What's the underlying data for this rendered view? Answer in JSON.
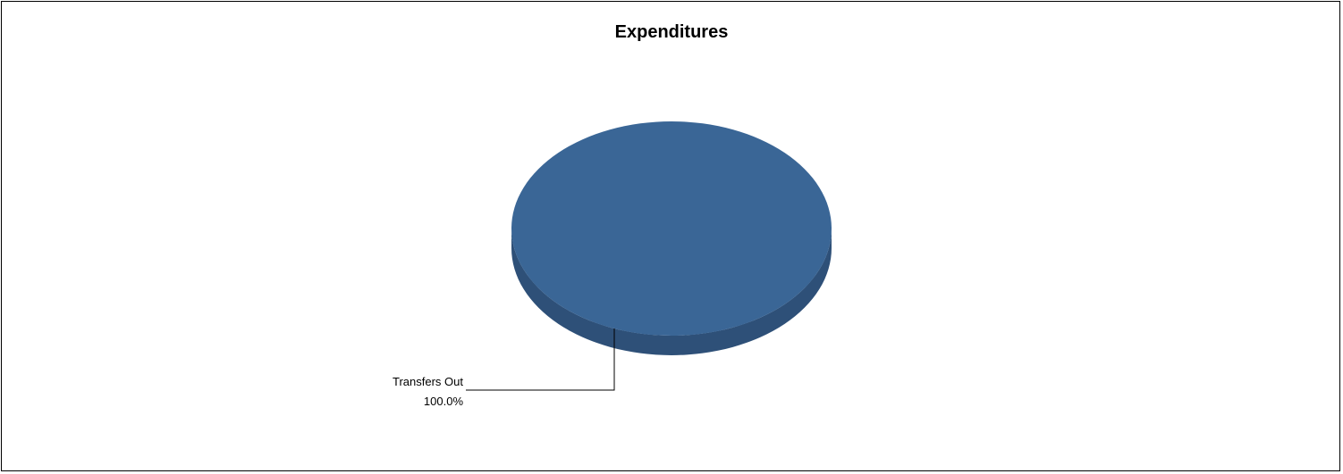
{
  "chart_data": {
    "type": "pie",
    "title": "Expenditures",
    "categories": [
      "Transfers Out"
    ],
    "values": [
      100.0
    ],
    "data_labels": [
      {
        "category": "Transfers Out",
        "percent_label": "100.0%"
      }
    ],
    "legend": "none",
    "style": "3d",
    "colors": {
      "slice_top": "#3A6696",
      "slice_side": "#2E5078",
      "leader_line": "#000000"
    }
  }
}
